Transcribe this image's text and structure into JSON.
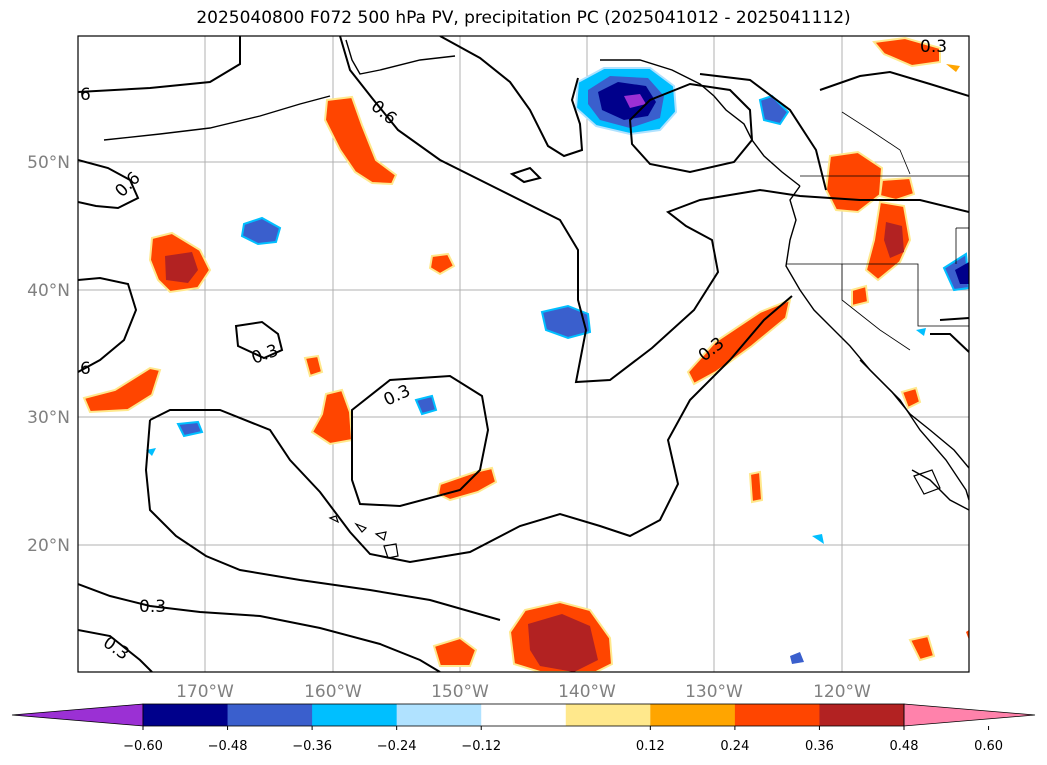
{
  "title": "2025040800 F072 500 hPa PV, precipitation PC (2025041012 - 2025041112)",
  "map": {
    "lon_labels": [
      "170°W",
      "160°W",
      "150°W",
      "140°W",
      "130°W",
      "120°W"
    ],
    "lat_labels": [
      "50°N",
      "40°N",
      "30°N",
      "20°N"
    ],
    "contour_labels": [
      "6",
      "0.6",
      "0.6",
      "0.3",
      "6",
      "0.3",
      "0.3",
      "0.3",
      "0.3",
      "0.3"
    ]
  },
  "colorbar": {
    "ticks": [
      "−0.60",
      "−0.48",
      "−0.36",
      "−0.24",
      "−0.12",
      "0.12",
      "0.24",
      "0.36",
      "0.48",
      "0.60"
    ],
    "colors": [
      "#9b30d4",
      "#00008b",
      "#3a5fcd",
      "#00bfff",
      "#b0e2ff",
      "#ffffff",
      "#ffe88c",
      "#ffa500",
      "#ff4500",
      "#b22222",
      "#ff82ab"
    ]
  }
}
